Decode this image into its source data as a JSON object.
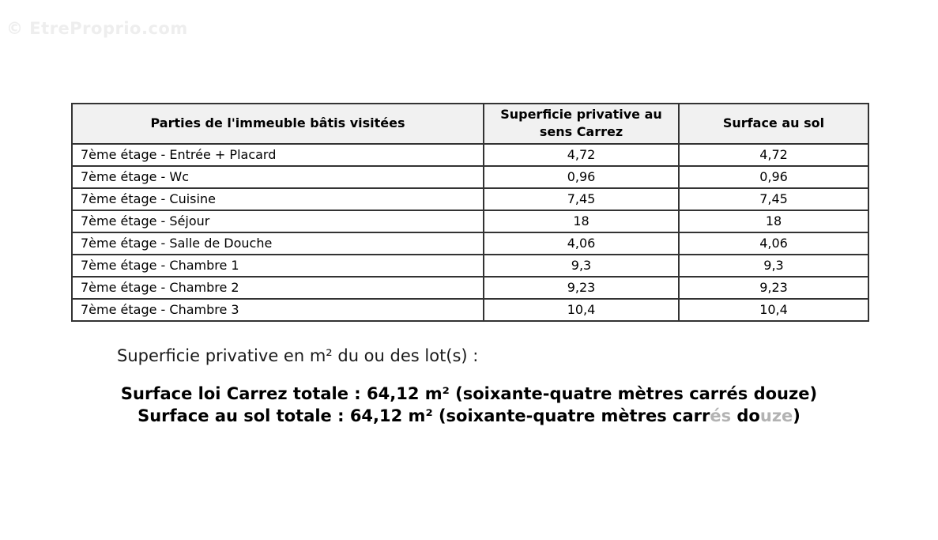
{
  "watermark": "© EtreProprio.com",
  "table": {
    "headers": [
      "Parties de l'immeuble bâtis visitées",
      "Superficie privative au sens Carrez",
      "Surface au sol"
    ],
    "rows": [
      {
        "label": "7ème étage - Entrée + Placard",
        "carrez": "4,72",
        "sol": "4,72"
      },
      {
        "label": "7ème étage - Wc",
        "carrez": "0,96",
        "sol": "0,96"
      },
      {
        "label": "7ème étage - Cuisine",
        "carrez": "7,45",
        "sol": "7,45"
      },
      {
        "label": "7ème étage - Séjour",
        "carrez": "18",
        "sol": "18"
      },
      {
        "label": "7ème étage - Salle de Douche",
        "carrez": "4,06",
        "sol": "4,06"
      },
      {
        "label": "7ème étage - Chambre 1",
        "carrez": "9,3",
        "sol": "9,3"
      },
      {
        "label": "7ème étage - Chambre 2",
        "carrez": "9,23",
        "sol": "9,23"
      },
      {
        "label": "7ème étage - Chambre 3",
        "carrez": "10,4",
        "sol": "10,4"
      }
    ]
  },
  "summary": {
    "intro": "Superficie privative en m² du ou des lot(s) :",
    "line1": "Surface loi Carrez totale : 64,12 m² (soixante-quatre mètres carrés douze)",
    "line2_parts": [
      {
        "text": "Surface au sol totale : 64,12 m² (soixante-quatre mètres carr",
        "faded": false
      },
      {
        "text": "és",
        "faded": true
      },
      {
        "text": " do",
        "faded": false
      },
      {
        "text": "uze",
        "faded": true
      },
      {
        "text": ")",
        "faded": false
      }
    ],
    "totals": {
      "surface_loi_carrez_m2": "64,12",
      "surface_au_sol_m2": "64,12"
    }
  },
  "colors": {
    "table_border": "#333333",
    "header_background": "#f1f1f1",
    "watermark_gray": "#eeeeee",
    "faded_text_gray": "#b3b3b3"
  }
}
